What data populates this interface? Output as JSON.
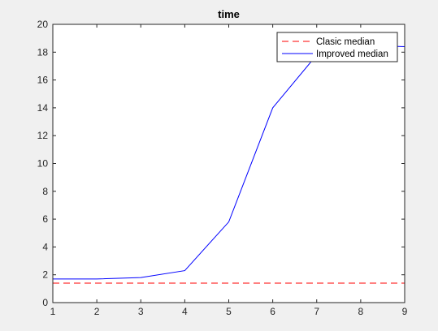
{
  "chart_data": {
    "type": "line",
    "title": "time",
    "xlabel": "",
    "ylabel": "",
    "xlim": [
      1,
      9
    ],
    "ylim": [
      0,
      20
    ],
    "xticks": [
      1,
      2,
      3,
      4,
      5,
      6,
      7,
      8,
      9
    ],
    "yticks": [
      0,
      2,
      4,
      6,
      8,
      10,
      12,
      14,
      16,
      18,
      20
    ],
    "grid": false,
    "legend_position": "top-right",
    "x": [
      1,
      2,
      3,
      4,
      5,
      6,
      7,
      8,
      9
    ],
    "series": [
      {
        "name": "Clasic median",
        "values": [
          1.4,
          1.4,
          1.4,
          1.4,
          1.4,
          1.4,
          1.4,
          1.4,
          1.4
        ],
        "color": "#ff0000",
        "style": "dashed"
      },
      {
        "name": "Improved median",
        "values": [
          1.7,
          1.7,
          1.8,
          2.3,
          5.8,
          14.0,
          17.8,
          18.5,
          18.4
        ],
        "color": "#0000ff",
        "style": "solid"
      }
    ]
  }
}
